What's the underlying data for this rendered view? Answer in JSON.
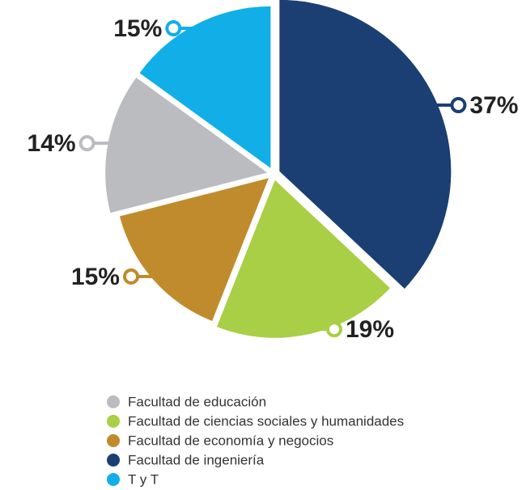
{
  "chart_data": {
    "type": "pie",
    "categories": [
      "Facultad de educación",
      "Facultad de ciencias sociales y humanidades",
      "Facultad de economía y negocios",
      "Facultad de ingeniería",
      "T y T"
    ],
    "values": [
      14,
      19,
      15,
      37,
      15
    ],
    "value_labels": [
      "14%",
      "19%",
      "15%",
      "37%",
      "15%"
    ],
    "colors": [
      "#bbbcc0",
      "#a8cf45",
      "#c08b2c",
      "#1b3f73",
      "#12aee8"
    ]
  }
}
